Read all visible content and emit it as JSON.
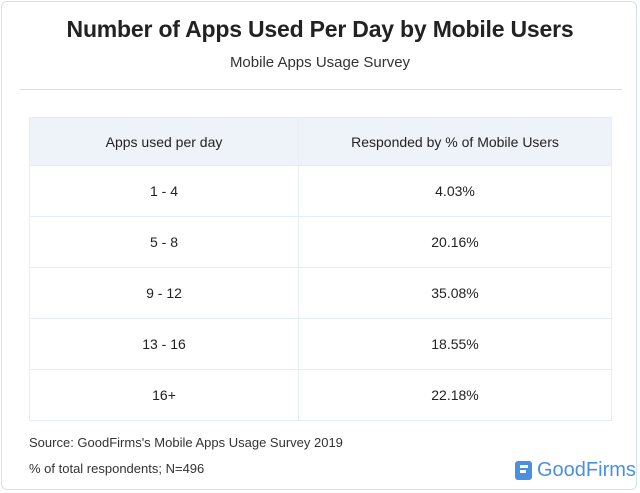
{
  "header": {
    "title": "Number of Apps Used Per Day by Mobile Users",
    "subtitle": "Mobile Apps Usage Survey"
  },
  "chart_data": {
    "type": "table",
    "title": "Number of Apps Used Per Day by Mobile Users",
    "subtitle": "Mobile Apps Usage Survey",
    "columns": [
      "Apps used per day",
      "Responded by % of Mobile Users"
    ],
    "rows": [
      [
        "1 - 4",
        "4.03%"
      ],
      [
        "5 - 8",
        "20.16%"
      ],
      [
        "9 - 12",
        "35.08%"
      ],
      [
        "13 - 16",
        "18.55%"
      ],
      [
        "16+",
        "22.18%"
      ]
    ]
  },
  "footer": {
    "source": "Source: GoodFirms's Mobile Apps Usage Survey 2019",
    "note": "% of total respondents; N=496",
    "logo_text": "GoodFirms"
  },
  "colors": {
    "header_bg": "#eef3f9",
    "brand": "#4a90e2",
    "border": "#d3e1f1"
  }
}
